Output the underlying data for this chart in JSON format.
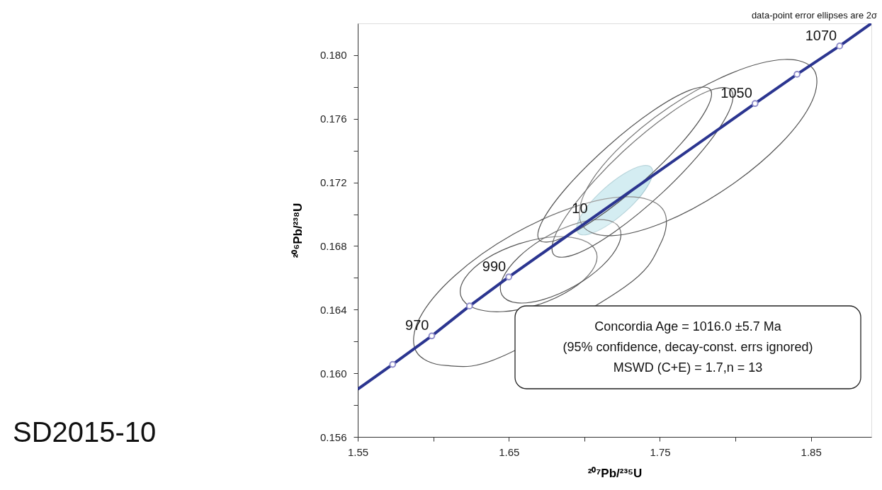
{
  "chart_data": {
    "type": "line",
    "title": "SD2015-10",
    "xlabel": "²⁰⁷Pb/²³⁵U",
    "ylabel": "²⁰⁶Pb/²³⁸U",
    "xlim": [
      1.55,
      1.89
    ],
    "ylim": [
      0.156,
      0.182
    ],
    "xticks": [
      1.55,
      {
        "value": 1.6,
        "label": null
      },
      1.65,
      {
        "value": 1.7,
        "label": null
      },
      1.75,
      {
        "value": 1.8,
        "label": null
      },
      1.85
    ],
    "yticks": [
      0.156,
      {
        "value": 0.158,
        "label": null
      },
      {
        "value": 0.16,
        "label": "0.160"
      },
      {
        "value": 0.162,
        "label": null
      },
      0.164,
      {
        "value": 0.166,
        "label": null
      },
      0.168,
      {
        "value": 0.17,
        "label": null
      },
      0.172,
      {
        "value": 0.174,
        "label": null
      },
      0.176,
      {
        "value": 0.178,
        "label": null
      },
      {
        "value": 0.18,
        "label": "0.180"
      }
    ],
    "grid": false,
    "series": [
      {
        "type": "line",
        "color": "#2b3590",
        "x": [
          1.55,
          1.5731,
          1.599,
          1.624,
          1.65,
          1.813,
          1.8408,
          1.869,
          1.89
        ],
        "values": [
          0.159,
          0.16056,
          0.16235,
          0.16423,
          0.16606,
          0.17696,
          0.1788,
          0.18058,
          0.182
        ]
      },
      {
        "type": "area",
        "color": "#555555",
        "x": [
          1.7526,
          1.7328,
          1.6963,
          1.6529,
          1.6143,
          1.5908,
          1.5887,
          1.6084,
          1.6449,
          1.6883,
          1.7269,
          1.7504
        ],
        "values": [
          0.17021,
          0.17109,
          0.17055,
          0.16874,
          0.16614,
          0.16344,
          0.16137,
          0.16049,
          0.16103,
          null,
          0.16544,
          0.16814
        ]
      },
      {
        "type": "area",
        "color": "#555555",
        "x": [
          1.7079,
          1.6986,
          1.6799,
          1.6566,
          1.635,
          1.621,
          1.6183,
          1.6276,
          1.6463,
          1.6697,
          1.6912,
          1.7052
        ],
        "values": [
          0.16761,
          0.16838,
          0.16858,
          0.16814,
          0.1672,
          0.16599,
          0.16485,
          0.16408,
          0.16388,
          0.16432,
          0.16527,
          0.16647
        ]
      },
      {
        "type": "area",
        "color": "#555555",
        "x": [
          1.7231,
          1.7132,
          1.6956,
          1.6749,
          1.6567,
          1.646,
          1.6455,
          1.6554,
          1.673,
          1.6937,
          1.7119,
          1.7226
        ],
        "values": [
          0.16916,
          0.16965,
          0.16944,
          0.16859,
          0.16732,
          0.16598,
          0.16492,
          0.16443,
          0.16464,
          0.16549,
          0.16676,
          0.1681
        ]
      },
      {
        "type": "area",
        "color": "#555555",
        "x": [
          1.8519,
          1.8324,
          1.7976,
          1.7569,
          1.721,
          1.6998,
          1.6987,
          1.7182,
          1.753,
          1.7937,
          1.8296,
          1.8508
        ],
        "values": [
          0.17909,
          0.17973,
          0.17888,
          0.17678,
          0.17398,
          0.17125,
          0.16929,
          0.16865,
          0.1695,
          0.1716,
          0.1744,
          0.17713
        ]
      },
      {
        "type": "area",
        "color": "#555555",
        "x": [
          1.7971,
          1.7828,
          1.7567,
          1.7256,
          1.6981,
          1.6813,
          1.6799,
          1.6942,
          1.7203,
          1.7514,
          1.7789,
          1.7957
        ],
        "values": [
          0.17781,
          0.17777,
          0.17635,
          0.17394,
          0.17117,
          0.1688,
          0.16745,
          0.16749,
          0.16891,
          0.17133,
          0.17409,
          0.17647
        ]
      },
      {
        "type": "area",
        "color": "#555555",
        "x": [
          1.7832,
          1.7701,
          1.7455,
          1.7158,
          1.689,
          1.6724,
          1.6702,
          1.6833,
          1.7079,
          1.7376,
          1.7644,
          1.781
        ],
        "values": [
          0.17786,
          0.17781,
          0.17651,
          0.17429,
          0.17176,
          0.1696,
          0.16838,
          0.16843,
          0.16973,
          0.17195,
          0.17448,
          0.17664
        ]
      },
      {
        "type": "area",
        "color": "#b3e0e8",
        "x": [
          1.7443,
          1.7376,
          1.7262,
          1.7132,
          1.702,
          1.6956,
          1.6959,
          1.7026,
          1.714,
          1.727,
          1.7382,
          1.7445
        ],
        "values": [
          0.17294,
          0.17303,
          0.17254,
          0.17161,
          0.17049,
          0.16947,
          0.16882,
          0.16874,
          0.16922,
          0.17015,
          0.17127,
          0.17229
        ]
      },
      {
        "type": "scatter",
        "marker": "circle",
        "color": "#8f8cc9",
        "x": [
          1.5731,
          1.599,
          1.624,
          1.65,
          1.813,
          1.8408,
          1.869
        ],
        "values": [
          0.16056,
          0.16235,
          0.16423,
          0.16606,
          0.17696,
          0.1788,
          0.18058
        ]
      }
    ],
    "annotations": [
      "data-point error ellipses are 2σ",
      "Concordia  Age = 1016.0 ±5.7 Ma",
      "(95%  confidence,  decay-const.  errs ignored)",
      "MSWD  (C+E) = 1.7,n = 13",
      {
        "text": "970",
        "x": 1.599,
        "y": 0.16235
      },
      {
        "text": "990",
        "x": 1.65,
        "y": 0.16606
      },
      {
        "text": "10",
        "x": 1.7041,
        "y": 0.16972
      },
      {
        "text": "1050",
        "x": 1.813,
        "y": 0.17696
      },
      {
        "text": "1070",
        "x": 1.869,
        "y": 0.18058
      }
    ]
  }
}
